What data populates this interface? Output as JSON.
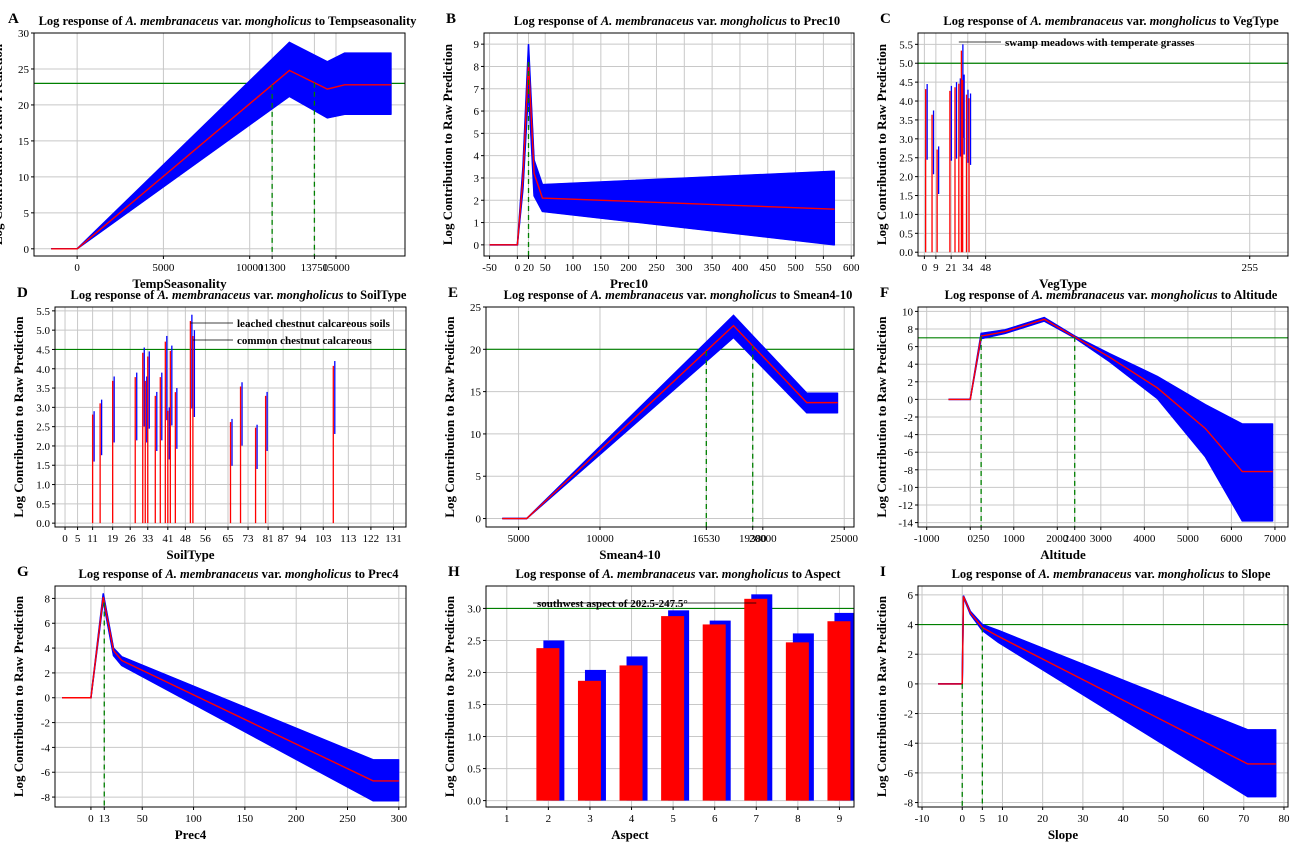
{
  "chart_data": [
    {
      "id": "A",
      "type": "line",
      "title": "Log response of A. membranaceus var. mongholicus to Tempseasonality",
      "xlabel": "TempSeasonality",
      "ylabel": "Log Contribution to Raw Prediction",
      "xlim": [
        -2500,
        19000
      ],
      "ylim": [
        -1,
        30
      ],
      "xticks": [
        0,
        5000,
        10000,
        11300,
        13750,
        15000
      ],
      "yticks": [
        0,
        5,
        10,
        15,
        20,
        25,
        30
      ],
      "threshold": 23,
      "vlines": [
        11300,
        13750
      ],
      "series": [
        {
          "role": "mean",
          "x": [
            -1500,
            0,
            12300,
            14500,
            15500,
            18200
          ],
          "y": [
            0,
            0,
            24.8,
            22.2,
            22.8,
            22.8
          ]
        },
        {
          "role": "upper",
          "x": [
            -1500,
            0,
            12300,
            14500,
            15500,
            18200
          ],
          "y": [
            0,
            0,
            28.7,
            26,
            27.2,
            27.2
          ]
        },
        {
          "role": "lower",
          "x": [
            -1500,
            0,
            12300,
            14500,
            15500,
            18200
          ],
          "y": [
            0,
            0,
            21.2,
            18.2,
            18.7,
            18.7
          ]
        }
      ]
    },
    {
      "id": "B",
      "type": "line",
      "title": "Log response of A. membranaceus var. mongholicus to Prec10",
      "xlabel": "Prec10",
      "ylabel": "Log Contribution to Raw Prediction",
      "xlim": [
        -60,
        605
      ],
      "ylim": [
        -0.5,
        9.5
      ],
      "xticks": [
        -50,
        0,
        20,
        50,
        100,
        150,
        200,
        250,
        300,
        350,
        400,
        450,
        500,
        550,
        600
      ],
      "yticks": [
        0,
        1,
        2,
        3,
        4,
        5,
        6,
        7,
        8,
        9
      ],
      "threshold": null,
      "vlines": [
        20
      ],
      "series": [
        {
          "role": "mean",
          "x": [
            -50,
            0,
            10,
            20,
            30,
            45,
            570
          ],
          "y": [
            0,
            0,
            3,
            8.2,
            3.2,
            2.1,
            1.6
          ]
        },
        {
          "role": "upper",
          "x": [
            -50,
            0,
            10,
            20,
            30,
            45,
            570
          ],
          "y": [
            0,
            0,
            3.5,
            9,
            3.8,
            2.7,
            3.3
          ]
        },
        {
          "role": "lower",
          "x": [
            -50,
            0,
            10,
            20,
            30,
            45,
            570
          ],
          "y": [
            0,
            0,
            2.5,
            7,
            2.2,
            1.5,
            0
          ]
        }
      ]
    },
    {
      "id": "C",
      "type": "bar",
      "title": "Log response of A. membranaceus var. mongholicus to VegType",
      "xlabel": "VegType",
      "ylabel": "Log Contribution to Raw Prediction",
      "xlim": [
        -5,
        285
      ],
      "ylim": [
        -0.1,
        5.8
      ],
      "xticks": [
        0,
        9,
        21,
        34,
        48,
        255
      ],
      "yticks": [
        0,
        0.5,
        1,
        1.5,
        2,
        2.5,
        3,
        3.5,
        4,
        4.5,
        5,
        5.5
      ],
      "threshold": 5,
      "annotations": [
        "swamp meadows with temperate grasses"
      ],
      "x": [
        1,
        6,
        10,
        20,
        24,
        27,
        29,
        30,
        33,
        35
      ],
      "values": [
        4.45,
        3.75,
        2.8,
        4.4,
        4.5,
        4.6,
        5.5,
        4.7,
        4.3,
        4.2
      ]
    },
    {
      "id": "D",
      "type": "bar",
      "title": "Log response of A. membranaceus var. mongholicus to SoilType",
      "xlabel": "SoilType",
      "ylabel": "Log Contribution to Raw Prediction",
      "xlim": [
        -4,
        136
      ],
      "ylim": [
        -0.1,
        5.6
      ],
      "xticks": [
        0,
        5,
        11,
        19,
        26,
        33,
        41,
        48,
        56,
        65,
        73,
        81,
        87,
        94,
        103,
        113,
        122,
        131
      ],
      "xticklabels": [
        "0",
        "5",
        "11",
        "19",
        "26",
        "33",
        "41",
        "48",
        "56",
        "65",
        "73",
        "81",
        "87",
        "94",
        "103",
        "113",
        "122",
        "131"
      ],
      "yticks": [
        0,
        0.5,
        1,
        1.5,
        2,
        2.5,
        3,
        3.5,
        4,
        4.5,
        5,
        5.5
      ],
      "threshold": 4.5,
      "annotations": [
        "leached chestnut calcareous soils",
        "common chestnut calcareous"
      ],
      "x": [
        11,
        14,
        19,
        28,
        31,
        32,
        33,
        36,
        38,
        40,
        41,
        42,
        44,
        50,
        51,
        66,
        70,
        76,
        80,
        107
      ],
      "values": [
        2.9,
        3.2,
        3.8,
        3.9,
        4.55,
        3.8,
        4.45,
        3.4,
        3.9,
        4.85,
        3.0,
        4.6,
        3.5,
        5.4,
        5.0,
        2.7,
        3.65,
        2.55,
        3.4,
        4.2
      ]
    },
    {
      "id": "E",
      "type": "line",
      "title": "Log response of A. membranaceus var. mongholicus to Smean4-10",
      "xlabel": "Smean4-10",
      "ylabel": "Log Contribution to Raw Prediction",
      "xlim": [
        3000,
        25600
      ],
      "ylim": [
        -1,
        25
      ],
      "xticks": [
        5000,
        10000,
        16530,
        19380,
        20000,
        25000
      ],
      "xticklabels": [
        "5000",
        "10000",
        "16530",
        "19380",
        "20000",
        "25000"
      ],
      "yticks": [
        0,
        5,
        10,
        15,
        20,
        25
      ],
      "threshold": 20,
      "vlines": [
        16530,
        19380
      ],
      "series": [
        {
          "role": "mean",
          "x": [
            4000,
            5500,
            18200,
            22700,
            24600
          ],
          "y": [
            0,
            0,
            22.8,
            13.7,
            13.7
          ]
        },
        {
          "role": "upper",
          "x": [
            4000,
            5500,
            18200,
            22700,
            24600
          ],
          "y": [
            0,
            0,
            24,
            14.8,
            14.8
          ]
        },
        {
          "role": "lower",
          "x": [
            4000,
            5500,
            18200,
            22700,
            24600
          ],
          "y": [
            0,
            0,
            21.4,
            12.5,
            12.5
          ]
        }
      ]
    },
    {
      "id": "F",
      "type": "line",
      "title": "Log response of A. membranaceus var. mongholicus to Altitude",
      "xlabel": "Altitude",
      "ylabel": "Log Contribution to Raw Prediction",
      "xlim": [
        -1200,
        7300
      ],
      "ylim": [
        -14.5,
        10.5
      ],
      "xticks": [
        -1000,
        0,
        250,
        1000,
        2000,
        2400,
        3000,
        4000,
        5000,
        6000,
        7000
      ],
      "yticks": [
        -14,
        -12,
        -10,
        -8,
        -6,
        -4,
        -2,
        0,
        2,
        4,
        6,
        8,
        10
      ],
      "threshold": 7,
      "vlines": [
        250,
        2400
      ],
      "series": [
        {
          "role": "mean",
          "x": [
            -500,
            0,
            250,
            800,
            1700,
            2400,
            3200,
            4300,
            5400,
            6250,
            6950
          ],
          "y": [
            0,
            0,
            7.2,
            7.7,
            9.1,
            7.1,
            4.8,
            1.3,
            -3.3,
            -8.2,
            -8.2
          ]
        },
        {
          "role": "upper",
          "x": [
            -500,
            0,
            250,
            800,
            1700,
            2400,
            3200,
            4300,
            5400,
            6250,
            6950
          ],
          "y": [
            0,
            0,
            7.5,
            7.9,
            9.3,
            7.2,
            5.2,
            2.6,
            -0.6,
            -2.8,
            -2.8
          ]
        },
        {
          "role": "lower",
          "x": [
            -500,
            0,
            250,
            800,
            1700,
            2400,
            3200,
            4300,
            5400,
            6250,
            6950
          ],
          "y": [
            0,
            0,
            6.9,
            7.5,
            8.9,
            7.0,
            4.3,
            0.1,
            -6.5,
            -13.8,
            -13.8
          ]
        }
      ]
    },
    {
      "id": "G",
      "type": "line",
      "title": "Log response of A. membranaceus var. mongholicus to Prec4",
      "xlabel": "Prec4",
      "ylabel": "Log Contribution to Raw Prediction",
      "xlim": [
        -35,
        307
      ],
      "ylim": [
        -8.8,
        9
      ],
      "xticks": [
        0,
        13,
        50,
        100,
        150,
        200,
        250,
        300
      ],
      "yticks": [
        -8,
        -6,
        -4,
        -2,
        0,
        2,
        4,
        6,
        8
      ],
      "threshold": null,
      "vlines": [
        13
      ],
      "series": [
        {
          "role": "mean",
          "x": [
            -28,
            0,
            12,
            22,
            30,
            275,
            300
          ],
          "y": [
            0,
            0,
            8.1,
            3.8,
            3.0,
            -6.7,
            -6.7
          ]
        },
        {
          "role": "upper",
          "x": [
            -28,
            0,
            12,
            22,
            30,
            275,
            300
          ],
          "y": [
            0,
            0,
            8.4,
            4.0,
            3.3,
            -5.0,
            -5.0
          ]
        },
        {
          "role": "lower",
          "x": [
            -28,
            0,
            12,
            22,
            30,
            275,
            300
          ],
          "y": [
            0,
            0,
            7.8,
            3.4,
            2.6,
            -8.3,
            -8.3
          ]
        }
      ]
    },
    {
      "id": "H",
      "type": "bar",
      "title": "Log response of A. membranaceus var. mongholicus to Aspect",
      "xlabel": "Aspect",
      "ylabel": "Log Contribution to Raw Prediction",
      "xlim": [
        0.5,
        9.35
      ],
      "ylim": [
        -0.1,
        3.35
      ],
      "xticks": [
        1,
        2,
        3,
        4,
        5,
        6,
        7,
        8,
        9
      ],
      "yticks": [
        0,
        0.5,
        1,
        1.5,
        2,
        2.5,
        3
      ],
      "threshold": 3,
      "annotations": [
        "southwest aspect of 202.5-247.5°"
      ],
      "categories": [
        "2",
        "3",
        "4",
        "5",
        "6",
        "7",
        "8",
        "9"
      ],
      "series": [
        {
          "role": "mean",
          "values": [
            2.38,
            1.87,
            2.11,
            2.88,
            2.75,
            3.15,
            2.47,
            2.8
          ]
        },
        {
          "role": "upper",
          "values": [
            2.5,
            2.04,
            2.25,
            2.97,
            2.81,
            3.22,
            2.61,
            2.93
          ]
        },
        {
          "role": "lower",
          "values": [
            2.24,
            1.7,
            1.97,
            2.78,
            2.67,
            3.08,
            2.35,
            2.67
          ]
        }
      ]
    },
    {
      "id": "I",
      "type": "line",
      "title": "Log response of A. membranaceus var. mongholicus to Slope",
      "xlabel": "Slope",
      "ylabel": "Log Contribution to Raw Prediction",
      "xlim": [
        -11,
        81
      ],
      "ylim": [
        -8.3,
        6.6
      ],
      "xticks": [
        -10,
        0,
        5,
        10,
        20,
        30,
        40,
        50,
        60,
        70,
        80
      ],
      "yticks": [
        -8,
        -6,
        -4,
        -2,
        0,
        2,
        4,
        6
      ],
      "threshold": 4,
      "vlines": [
        0,
        5
      ],
      "series": [
        {
          "role": "mean",
          "x": [
            -6,
            0,
            0.3,
            2,
            5,
            9,
            71,
            78
          ],
          "y": [
            0,
            0,
            5.9,
            4.8,
            3.8,
            3.2,
            -5.4,
            -5.4
          ]
        },
        {
          "role": "upper",
          "x": [
            -6,
            0,
            0.3,
            2,
            5,
            9,
            71,
            78
          ],
          "y": [
            0,
            0,
            5.95,
            4.9,
            4.0,
            3.6,
            -3.1,
            -3.1
          ]
        },
        {
          "role": "lower",
          "x": [
            -6,
            0,
            0.3,
            2,
            5,
            9,
            71,
            78
          ],
          "y": [
            0,
            0,
            5.85,
            4.7,
            3.6,
            2.8,
            -7.6,
            -7.6
          ]
        }
      ]
    }
  ],
  "colors": {
    "band": "#0000ff",
    "mean": "#ff0000",
    "threshold": "#008000",
    "vline": "#008000",
    "lower_bar": "#20b2aa",
    "grid": "#c8c8c8"
  }
}
